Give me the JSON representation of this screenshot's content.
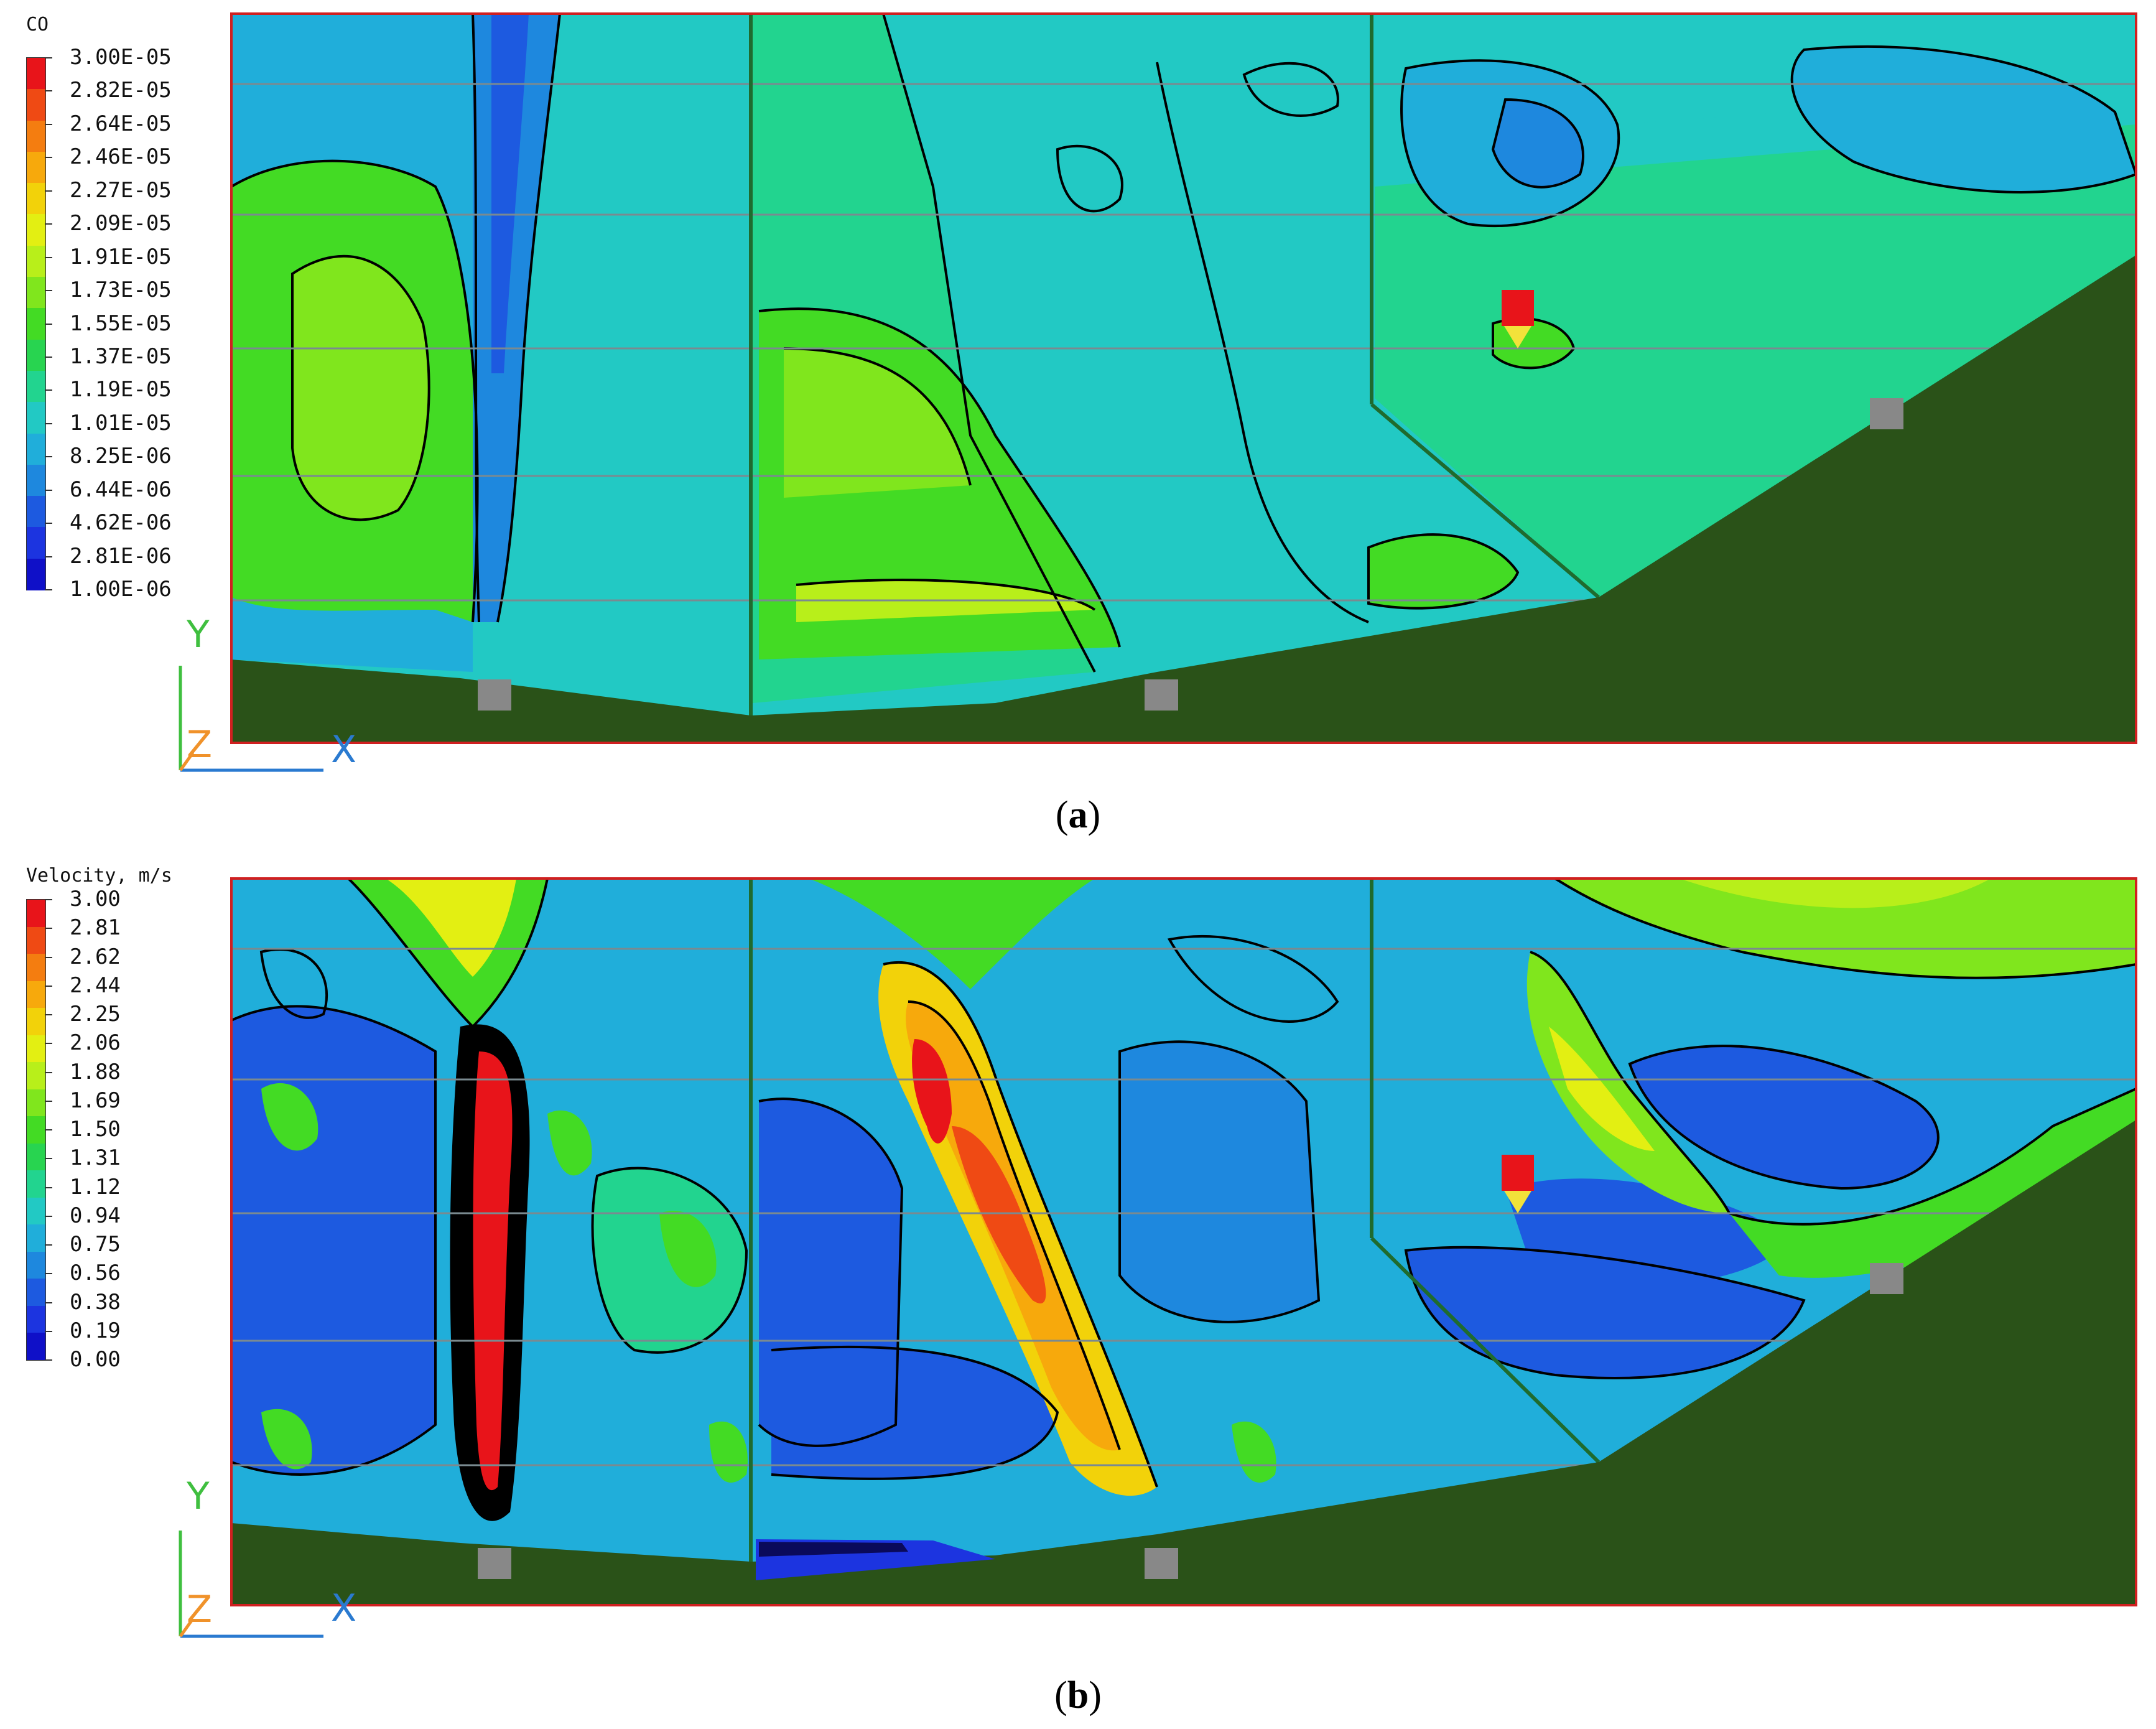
{
  "panels": [
    {
      "id": "a",
      "legend_title": "CO",
      "legend_values": [
        "3.00E-05",
        "2.82E-05",
        "2.64E-05",
        "2.46E-05",
        "2.27E-05",
        "2.09E-05",
        "1.91E-05",
        "1.73E-05",
        "1.55E-05",
        "1.37E-05",
        "1.19E-05",
        "1.01E-05",
        "8.25E-06",
        "6.44E-06",
        "4.62E-06",
        "2.81E-06",
        "1.00E-06"
      ],
      "legend_colors": [
        "#e8141a",
        "#ef4a14",
        "#f47d10",
        "#f7a90c",
        "#f2d20a",
        "#e3ef12",
        "#b8ef1a",
        "#80e61d",
        "#43db24",
        "#28d450",
        "#22d48f",
        "#22c9c4",
        "#20aeda",
        "#1e88de",
        "#1d5ae0",
        "#1c34e0",
        "#0f10c8"
      ],
      "axes": {
        "y": "Y",
        "z": "Z",
        "x": "X"
      },
      "caption_letter": "a"
    },
    {
      "id": "b",
      "legend_title": "Velocity, m/s",
      "legend_values": [
        "3.00",
        "2.81",
        "2.62",
        "2.44",
        "2.25",
        "2.06",
        "1.88",
        "1.69",
        "1.50",
        "1.31",
        "1.12",
        "0.94",
        "0.75",
        "0.56",
        "0.38",
        "0.19",
        "0.00"
      ],
      "legend_colors": [
        "#e8141a",
        "#ef4a14",
        "#f47d10",
        "#f7a90c",
        "#f2d20a",
        "#e3ef12",
        "#b8ef1a",
        "#80e61d",
        "#43db24",
        "#28d450",
        "#22d48f",
        "#22c9c4",
        "#20aeda",
        "#1e88de",
        "#1d5ae0",
        "#1c34e0",
        "#0f10c8"
      ],
      "axes": {
        "y": "Y",
        "z": "Z",
        "x": "X"
      },
      "caption_letter": "b"
    }
  ],
  "colors": {
    "ground": "#2a5218",
    "border": "#d02020",
    "sensor": "#888888",
    "source_red": "#e8141a",
    "source_yellow": "#f2e23a",
    "axis_y": "#3fbf3f",
    "axis_z": "#f0922a",
    "axis_x": "#2a7ad0"
  }
}
